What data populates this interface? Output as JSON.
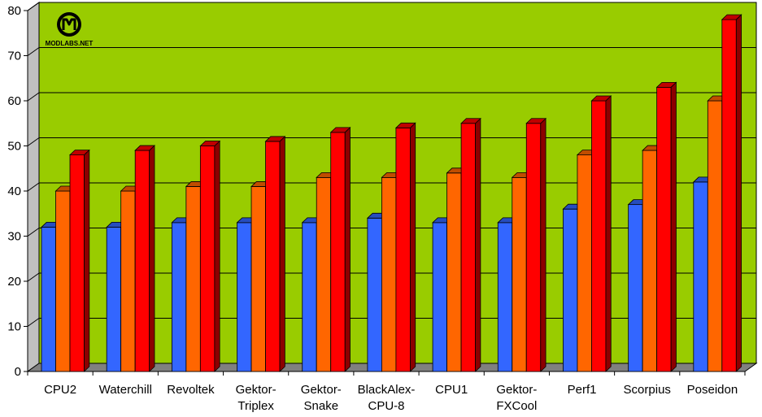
{
  "logo": {
    "text": "MODLABS.NET"
  },
  "colors": {
    "plot_bg": "#99cc00",
    "floor": "#808080",
    "side_wall": "#c0c0c0",
    "gridline": "#000000"
  },
  "chart_data": {
    "type": "bar",
    "title": "",
    "xlabel": "",
    "ylabel": "",
    "ylim": [
      0,
      80
    ],
    "yticks": [
      0,
      10,
      20,
      30,
      40,
      50,
      60,
      70,
      80
    ],
    "grid": true,
    "legend": "none",
    "categories": [
      [
        "CPU2"
      ],
      [
        "Waterchill"
      ],
      [
        "Revoltek"
      ],
      [
        "Gektor-",
        "Triplex"
      ],
      [
        "Gektor-",
        "Snake"
      ],
      [
        "BlackAlex-",
        "CPU-8"
      ],
      [
        "CPU1"
      ],
      [
        "Gektor-",
        "FXCool"
      ],
      [
        "Perf1"
      ],
      [
        "Scorpius"
      ],
      [
        "Poseidon"
      ]
    ],
    "series": [
      {
        "color": "#3366ff",
        "values": [
          32,
          32,
          33,
          33,
          33,
          34,
          33,
          33,
          36,
          37,
          42
        ]
      },
      {
        "color": "#ff6600",
        "values": [
          40,
          40,
          41,
          41,
          43,
          43,
          44,
          43,
          48,
          49,
          60
        ]
      },
      {
        "color": "#ff0000",
        "values": [
          48,
          49,
          50,
          51,
          53,
          54,
          55,
          55,
          60,
          63,
          78
        ]
      }
    ]
  }
}
